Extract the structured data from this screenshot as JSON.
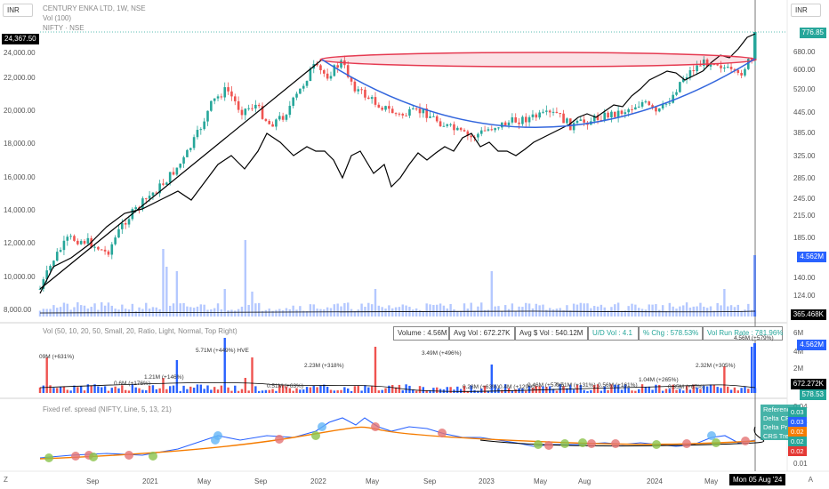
{
  "header": {
    "currency_left": "INR",
    "currency_right": "INR",
    "symbol_line": "CENTURY ENKA LTD, 1W, NSE",
    "vol_line": "Vol (100)",
    "compare_line": "NIFTY · NSE"
  },
  "left_axis": {
    "labels": [
      "24,000.00",
      "22,000.00",
      "20,000.00",
      "18,000.00",
      "16,000.00",
      "14,000.00",
      "12,000.00",
      "10,000.00",
      "8,000.00"
    ],
    "current": "24,367.50"
  },
  "right_axis": {
    "labels": [
      "680.00",
      "600.00",
      "520.00",
      "445.00",
      "385.00",
      "325.00",
      "285.00",
      "245.00",
      "215.00",
      "185.00",
      "140.00",
      "124.00"
    ],
    "current_price": "776.85",
    "vol_value": "4.562M",
    "vol_ma": "365.468K"
  },
  "vol_pane": {
    "legend": "Vol (50, 10, 20, 50, Small, 20, Ratio, Light, Normal, Top Right)",
    "stats": [
      {
        "label": "Volume : 4.56M",
        "green": false
      },
      {
        "label": "Avg Vol : 672.27K",
        "green": false
      },
      {
        "label": "Avg $ Vol : 540.12M",
        "green": false
      },
      {
        "label": "U/D Vol : 4.1",
        "green": true
      },
      {
        "label": "% Chg : 578.53%",
        "green": true
      },
      {
        "label": "Vol Run Rate : 781.96%",
        "green": true
      }
    ],
    "annotations": [
      {
        "text": "09M (+631%)"
      },
      {
        "text": "0.6M (+176%)"
      },
      {
        "text": "1.21M (+146%)"
      },
      {
        "text": "5.71M (+449%) HVE"
      },
      {
        "text": "0.51M (+63%)"
      },
      {
        "text": "2.23M (+318%)"
      },
      {
        "text": "3.49M (+496%)"
      },
      {
        "text": "0.28M (+63%)"
      },
      {
        "text": "0.4M (+129%)"
      },
      {
        "text": "0.46M (+57%)"
      },
      {
        "text": "0.51M (+131%)"
      },
      {
        "text": "0.56M (+161%)"
      },
      {
        "text": "1.04M (+265%)"
      },
      {
        "text": "0.35M (+67%)"
      },
      {
        "text": "2.32M (+305%)"
      },
      {
        "text": "4.56M (+579%)"
      }
    ],
    "axis": [
      "6M",
      "4M",
      "2M"
    ],
    "vol_value": "4.562M",
    "avg_value": "672.272K",
    "ratio_value": "578.53"
  },
  "rs_pane": {
    "legend": "Fixed ref. spread (NIFTY, Line, 5, 13, 21)",
    "axis": [
      "0.04",
      "0.03",
      "0.02",
      "0.01"
    ],
    "ref_labels": [
      "Reference",
      "Delta CR",
      "Delta Pr",
      "CRS Trend"
    ],
    "badges": [
      {
        "value": "0.03",
        "color": "#26a69a"
      },
      {
        "value": "0.03",
        "color": "#2962ff"
      },
      {
        "value": "0.02",
        "color": "#f57c00"
      },
      {
        "value": "0.02",
        "color": "#26a69a"
      },
      {
        "value": "0.02",
        "color": "#e53935"
      }
    ]
  },
  "time_axis": {
    "labels": [
      "Sep",
      "2021",
      "May",
      "Sep",
      "2022",
      "May",
      "Sep",
      "2023",
      "May",
      "Aug",
      "2024",
      "May"
    ],
    "current_date": "Mon 05 Aug '24"
  },
  "colors": {
    "up": "#26a69a",
    "down": "#ef5350",
    "volume": "#2962ff",
    "nifty_line": "#000000",
    "arc": "#3366dd",
    "ellipse": "#e53950"
  },
  "chart_data": {
    "type": "candlestick",
    "symbol": "CENTURY ENKA LTD",
    "interval": "1W",
    "comparison": "NIFTY",
    "price_range": [
      115,
      800
    ],
    "last_price": 776.85,
    "last_volume": "4.562M",
    "nifty_range": [
      8000,
      24367.5
    ],
    "nifty_last": 24367.5
  },
  "footer": {
    "logo": "Z",
    "scroll": "A"
  }
}
